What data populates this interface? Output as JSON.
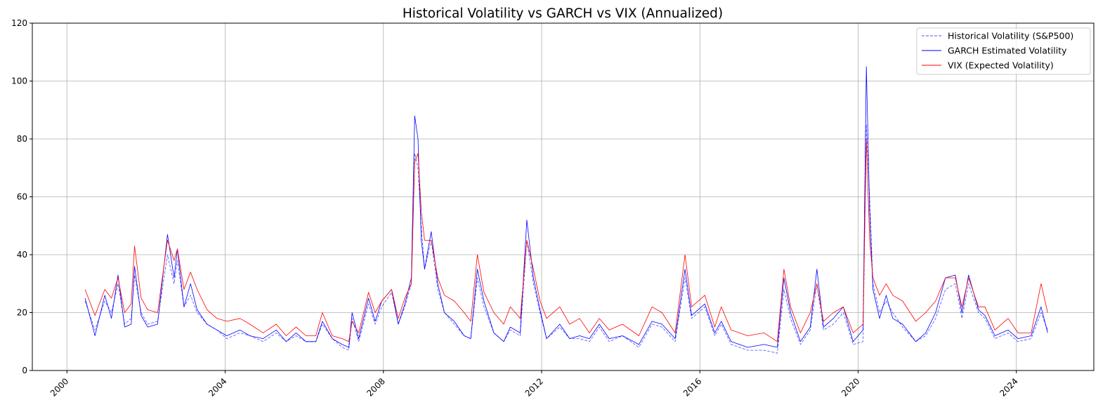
{
  "chart_data": {
    "type": "line",
    "title": "Historical Volatility vs GARCH vs VIX (Annualized)",
    "xlabel": "",
    "ylabel": "",
    "xlim": [
      "1999-02",
      "2025-12"
    ],
    "ylim": [
      0,
      120
    ],
    "grid": true,
    "legend_placement": "top-right",
    "x_ticks": [
      "2000",
      "2004",
      "2008",
      "2012",
      "2016",
      "2020",
      "2024"
    ],
    "y_ticks": [
      "0",
      "20",
      "40",
      "60",
      "80",
      "100",
      "120"
    ],
    "x": [
      "2000-06",
      "2000-09",
      "2000-12",
      "2001-02",
      "2001-04",
      "2001-06",
      "2001-08",
      "2001-09",
      "2001-11",
      "2002-01",
      "2002-04",
      "2002-07",
      "2002-09",
      "2002-10",
      "2002-12",
      "2003-02",
      "2003-04",
      "2003-07",
      "2003-10",
      "2004-01",
      "2004-05",
      "2004-08",
      "2004-12",
      "2005-04",
      "2005-07",
      "2005-10",
      "2006-01",
      "2006-04",
      "2006-06",
      "2006-09",
      "2006-12",
      "2007-02",
      "2007-03",
      "2007-05",
      "2007-08",
      "2007-10",
      "2007-12",
      "2008-03",
      "2008-05",
      "2008-07",
      "2008-09",
      "2008-10",
      "2008-11",
      "2008-12",
      "2009-01",
      "2009-03",
      "2009-05",
      "2009-07",
      "2009-10",
      "2010-01",
      "2010-03",
      "2010-05",
      "2010-07",
      "2010-10",
      "2011-01",
      "2011-03",
      "2011-06",
      "2011-08",
      "2011-10",
      "2011-12",
      "2012-02",
      "2012-06",
      "2012-09",
      "2012-12",
      "2013-03",
      "2013-06",
      "2013-09",
      "2014-01",
      "2014-06",
      "2014-10",
      "2015-01",
      "2015-05",
      "2015-08",
      "2015-10",
      "2016-02",
      "2016-05",
      "2016-07",
      "2016-10",
      "2017-03",
      "2017-08",
      "2017-12",
      "2018-02",
      "2018-04",
      "2018-07",
      "2018-10",
      "2018-12",
      "2019-02",
      "2019-05",
      "2019-08",
      "2019-11",
      "2020-02",
      "2020-03",
      "2020-04",
      "2020-05",
      "2020-07",
      "2020-09",
      "2020-11",
      "2021-02",
      "2021-06",
      "2021-09",
      "2021-12",
      "2022-03",
      "2022-06",
      "2022-08",
      "2022-10",
      "2023-01",
      "2023-03",
      "2023-06",
      "2023-10",
      "2024-01",
      "2024-05",
      "2024-08",
      "2024-10"
    ],
    "series": [
      {
        "name": "Historical Volatility (S&P500)",
        "color": "#0000ff",
        "style": "dashed",
        "values": [
          24,
          14,
          24,
          20,
          30,
          16,
          18,
          33,
          20,
          16,
          17,
          40,
          30,
          38,
          22,
          26,
          20,
          16,
          14,
          11,
          13,
          12,
          10,
          13,
          10,
          12,
          10,
          10,
          16,
          11,
          8,
          7,
          18,
          10,
          23,
          16,
          22,
          27,
          16,
          22,
          30,
          75,
          70,
          50,
          35,
          45,
          28,
          20,
          16,
          12,
          11,
          32,
          22,
          13,
          10,
          14,
          12,
          45,
          30,
          20,
          11,
          15,
          11,
          11,
          10,
          15,
          10,
          12,
          8,
          16,
          15,
          10,
          32,
          18,
          22,
          12,
          16,
          9,
          7,
          7,
          6,
          28,
          18,
          9,
          14,
          30,
          14,
          16,
          20,
          9,
          10,
          85,
          60,
          30,
          20,
          24,
          20,
          15,
          10,
          12,
          18,
          28,
          30,
          18,
          30,
          20,
          18,
          11,
          13,
          10,
          11,
          20,
          14
        ]
      },
      {
        "name": "GARCH Estimated Volatility",
        "color": "#0000ff",
        "style": "solid",
        "values": [
          25,
          12,
          26,
          18,
          33,
          15,
          16,
          36,
          19,
          15,
          16,
          47,
          32,
          42,
          22,
          30,
          21,
          16,
          14,
          12,
          14,
          12,
          11,
          14,
          10,
          13,
          10,
          10,
          17,
          11,
          9,
          8,
          20,
          11,
          25,
          17,
          24,
          28,
          16,
          23,
          32,
          88,
          80,
          45,
          35,
          48,
          30,
          20,
          17,
          12,
          11,
          35,
          24,
          13,
          10,
          15,
          13,
          52,
          32,
          21,
          11,
          16,
          11,
          12,
          11,
          16,
          11,
          12,
          9,
          17,
          16,
          11,
          35,
          19,
          23,
          13,
          17,
          10,
          8,
          9,
          8,
          32,
          20,
          10,
          15,
          35,
          15,
          18,
          22,
          10,
          14,
          105,
          55,
          28,
          18,
          26,
          18,
          16,
          10,
          13,
          20,
          32,
          33,
          20,
          33,
          21,
          19,
          12,
          14,
          11,
          12,
          22,
          13
        ]
      },
      {
        "name": "VIX (Expected Volatility)",
        "color": "#ff0000",
        "style": "solid",
        "values": [
          28,
          19,
          28,
          25,
          32,
          20,
          23,
          43,
          25,
          21,
          20,
          45,
          38,
          42,
          28,
          34,
          28,
          21,
          18,
          17,
          18,
          16,
          13,
          16,
          12,
          15,
          12,
          12,
          20,
          12,
          11,
          10,
          17,
          13,
          27,
          20,
          24,
          28,
          18,
          25,
          30,
          72,
          75,
          55,
          45,
          45,
          32,
          26,
          24,
          20,
          17,
          40,
          27,
          20,
          16,
          22,
          18,
          45,
          35,
          24,
          18,
          22,
          16,
          18,
          13,
          18,
          14,
          16,
          12,
          22,
          20,
          13,
          40,
          22,
          26,
          15,
          22,
          14,
          12,
          13,
          10,
          35,
          22,
          13,
          20,
          30,
          17,
          20,
          22,
          13,
          16,
          80,
          45,
          32,
          26,
          30,
          26,
          24,
          17,
          20,
          24,
          32,
          32,
          22,
          32,
          22,
          22,
          14,
          18,
          13,
          13,
          30,
          20
        ]
      }
    ]
  }
}
